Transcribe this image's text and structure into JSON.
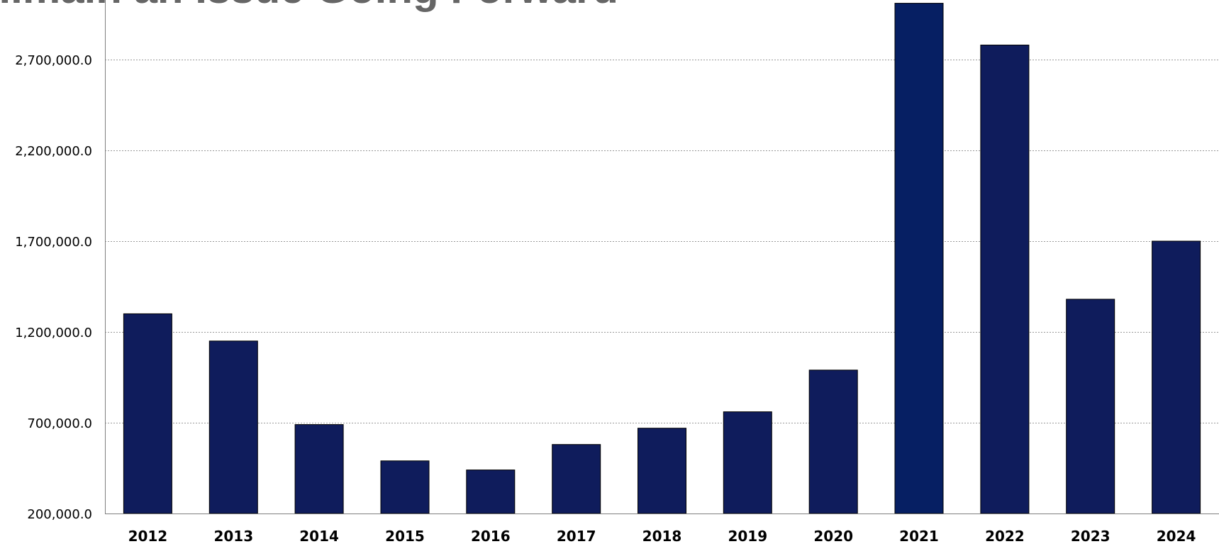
{
  "chart_data": {
    "type": "bar",
    "title": "...main an Issue Going Forward",
    "xlabel": "",
    "ylabel": "",
    "categories": [
      "2012",
      "2013",
      "2014",
      "2015",
      "2016",
      "2017",
      "2018",
      "2019",
      "2020",
      "2021",
      "2022",
      "2023",
      "2024"
    ],
    "values": [
      1300000,
      1150000,
      690000,
      490000,
      440000,
      580000,
      670000,
      760000,
      990000,
      3010000,
      2780000,
      1380000,
      1700000
    ],
    "y_ticks": [
      200000,
      700000,
      1200000,
      1700000,
      2200000,
      2700000
    ],
    "y_tick_labels": [
      "200,000.0",
      "700,000.0",
      "1,200,000.0",
      "1,700,000.0",
      "2,200,000.0",
      "2,700,000.0"
    ],
    "ylim": [
      200000,
      2990000
    ],
    "grid": true,
    "legend": "none",
    "colors": {
      "bar_fill": "#0f1c5c",
      "bar_fill_highlight": "#061f63",
      "bar_stroke": "#000000",
      "grid": "#999999",
      "axis": "#7f7f7f",
      "title": "#666666",
      "tick_text": "#000000"
    }
  }
}
